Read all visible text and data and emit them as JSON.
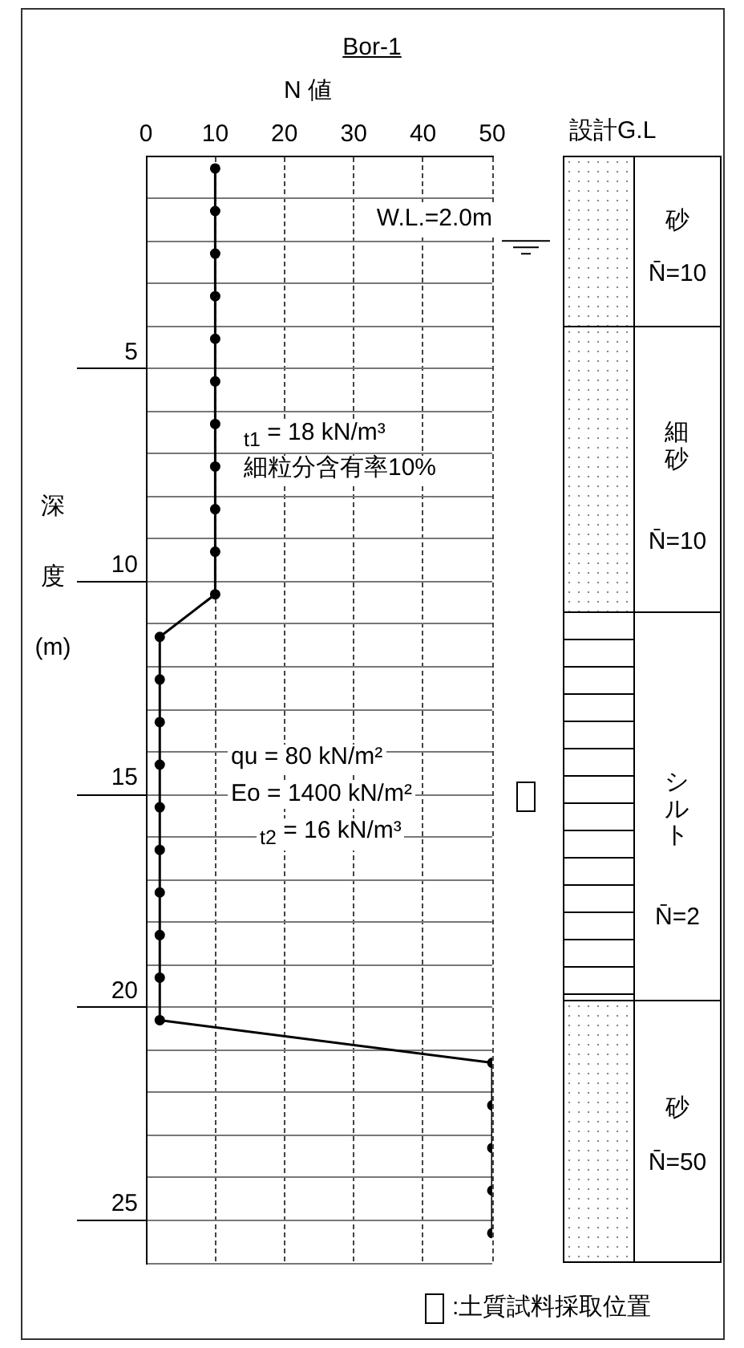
{
  "chart_data": {
    "type": "line",
    "title": "Bor-1",
    "xlabel": "N 値",
    "ylabel": "深度(m)",
    "xlim": [
      0,
      50
    ],
    "xticks": [
      0,
      10,
      20,
      30,
      40,
      50
    ],
    "ylim": [
      26,
      0
    ],
    "yticks": [
      {
        "value": 1,
        "label": null
      },
      {
        "value": 2,
        "label": null
      },
      {
        "value": 3,
        "label": null
      },
      {
        "value": 4,
        "label": null
      },
      5,
      {
        "value": 6,
        "label": null
      },
      {
        "value": 7,
        "label": null
      },
      {
        "value": 8,
        "label": null
      },
      {
        "value": 9,
        "label": null
      },
      10,
      {
        "value": 11,
        "label": null
      },
      {
        "value": 12,
        "label": null
      },
      {
        "value": 13,
        "label": null
      },
      {
        "value": 14,
        "label": null
      },
      15,
      {
        "value": 16,
        "label": null
      },
      {
        "value": 17,
        "label": null
      },
      {
        "value": 18,
        "label": null
      },
      {
        "value": 19,
        "label": null
      },
      20,
      {
        "value": 21,
        "label": null
      },
      {
        "value": 22,
        "label": null
      },
      {
        "value": 23,
        "label": null
      },
      {
        "value": 24,
        "label": null
      },
      25,
      {
        "value": 26,
        "label": null
      }
    ],
    "grid": true,
    "legend": false,
    "marker": "circle",
    "line_style": "solid",
    "series": [
      {
        "color": "#000000",
        "x": [
          10,
          10,
          10,
          10,
          10,
          10,
          10,
          10,
          10,
          10,
          10,
          2,
          2,
          2,
          2,
          2,
          2,
          2,
          2,
          2,
          2,
          50,
          50,
          50,
          50,
          50
        ],
        "values": [
          0.3,
          1.3,
          2.3,
          3.3,
          4.3,
          5.3,
          6.3,
          7.3,
          8.3,
          9.3,
          10.3,
          11.3,
          12.3,
          13.3,
          14.3,
          15.3,
          16.3,
          17.3,
          18.3,
          19.3,
          20.3,
          21.3,
          22.3,
          23.3,
          24.3,
          25.3
        ]
      }
    ],
    "ref_lines": [
      {
        "axis": "y",
        "value": 2,
        "label": "W.L.=2.0m"
      }
    ],
    "annotations": [
      "設計G.L",
      "$_{t1}$ = 18 kN/m³",
      "細粒分含有率10%",
      "qu = 80 kN/m²",
      "Eo = 1400 kN/m²",
      "$_{t2}$ = 16 kN/m³",
      ":土質試料採取位置",
      "砂",
      "N̄=10",
      "細砂",
      "N̄=10",
      "シルト",
      "N̄=2",
      "砂",
      "N̄=50"
    ]
  }
}
